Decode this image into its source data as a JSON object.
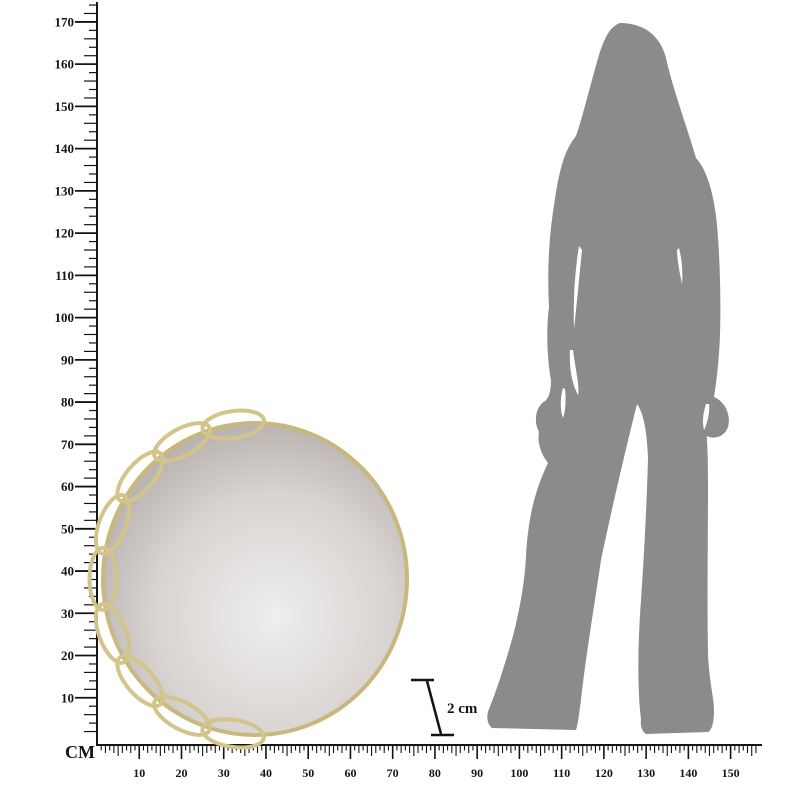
{
  "rulers": {
    "unit_label": "CM",
    "vertical": {
      "labels": [
        "10",
        "20",
        "30",
        "40",
        "50",
        "60",
        "70",
        "80",
        "90",
        "100",
        "110",
        "120",
        "130",
        "140",
        "150",
        "160",
        "170"
      ]
    },
    "horizontal": {
      "labels": [
        "10",
        "20",
        "30",
        "40",
        "50",
        "60",
        "70",
        "80",
        "90",
        "100",
        "110",
        "120",
        "130",
        "140",
        "150"
      ]
    }
  },
  "depth_marker": {
    "label": "2 cm"
  },
  "colors": {
    "background": "#ffffff",
    "ruler": "#141414",
    "silhouette": "#8b8b8b",
    "frame_gold": "#c8b87c",
    "chain_gold": "#d3c48c",
    "glass_center": "#efeeed",
    "glass_mid": "#d8d4d2",
    "glass_edge": "#a59d99"
  }
}
